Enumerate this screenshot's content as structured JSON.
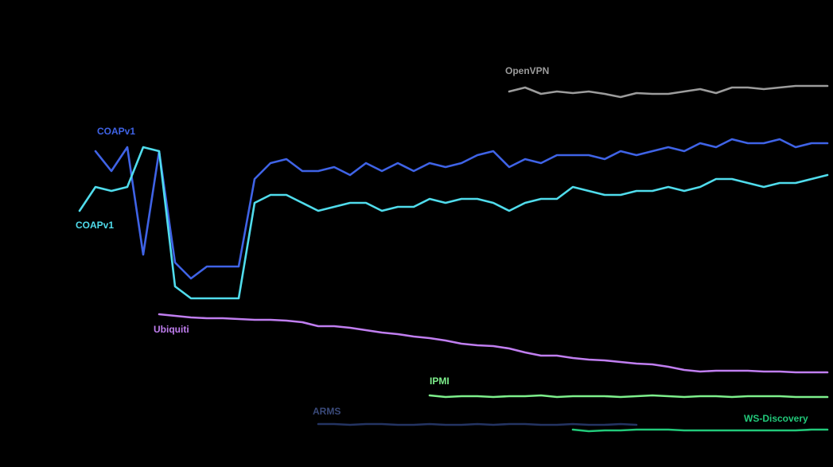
{
  "chart_data": {
    "type": "line",
    "categories": [
      null,
      null,
      null,
      null,
      null,
      null,
      null,
      null,
      null,
      null,
      null,
      null,
      null,
      null,
      null,
      null,
      null,
      null,
      null,
      null,
      null,
      null,
      null,
      null,
      null,
      null,
      null,
      null,
      null,
      null,
      null,
      null,
      null,
      null,
      null,
      null,
      null,
      null,
      null,
      null,
      null,
      null,
      null,
      null,
      null,
      null,
      null,
      null
    ],
    "ylim": [
      0,
      587
    ],
    "series": [
      {
        "name": "COAPv1",
        "color": "#3f63e6",
        "values": [
          null,
          397,
          372,
          402,
          267,
          397,
          257,
          237,
          252,
          252,
          252,
          362,
          382,
          387,
          372,
          372,
          377,
          367,
          382,
          372,
          382,
          372,
          382,
          377,
          382,
          392,
          397,
          377,
          387,
          382,
          392,
          392,
          392,
          387,
          397,
          392,
          397,
          402,
          397,
          407,
          402,
          412,
          407,
          407,
          412,
          402,
          407,
          407
        ]
      },
      {
        "name": "COAPv1",
        "color": "#50dcec",
        "values": [
          322,
          352,
          347,
          352,
          402,
          397,
          227,
          212,
          212,
          212,
          212,
          332,
          342,
          342,
          332,
          322,
          327,
          332,
          332,
          322,
          327,
          327,
          337,
          332,
          337,
          337,
          332,
          322,
          332,
          337,
          337,
          352,
          347,
          342,
          342,
          347,
          347,
          352,
          347,
          352,
          362,
          362,
          357,
          352,
          357,
          357,
          362,
          367
        ]
      },
      {
        "name": "OpenVPN",
        "color": "#9c9c9c",
        "values": [
          null,
          null,
          null,
          null,
          null,
          null,
          null,
          null,
          null,
          null,
          null,
          null,
          null,
          null,
          null,
          null,
          null,
          null,
          null,
          null,
          null,
          null,
          null,
          null,
          null,
          null,
          null,
          472,
          477,
          469,
          472,
          470,
          472,
          469,
          465,
          470,
          469,
          469,
          472,
          475,
          470,
          477,
          477,
          475,
          477,
          479,
          479,
          479
        ]
      },
      {
        "name": "Ubiquiti",
        "color": "#c07ef0",
        "values": [
          null,
          null,
          null,
          null,
          null,
          192,
          190,
          188,
          187,
          187,
          186,
          185,
          185,
          184,
          182,
          177,
          177,
          175,
          172,
          169,
          167,
          164,
          162,
          159,
          155,
          153,
          152,
          149,
          144,
          140,
          140,
          137,
          135,
          134,
          132,
          130,
          129,
          126,
          122,
          120,
          121,
          121,
          121,
          120,
          120,
          119,
          119,
          119
        ]
      },
      {
        "name": "IPMI",
        "color": "#7ef08c",
        "values": [
          null,
          null,
          null,
          null,
          null,
          null,
          null,
          null,
          null,
          null,
          null,
          null,
          null,
          null,
          null,
          null,
          null,
          null,
          null,
          null,
          null,
          null,
          90,
          88,
          89,
          89,
          88,
          89,
          89,
          90,
          88,
          89,
          89,
          89,
          88,
          89,
          90,
          89,
          88,
          89,
          89,
          88,
          89,
          89,
          89,
          88,
          88,
          88
        ]
      },
      {
        "name": "ARMS",
        "color": "#243463",
        "values": [
          null,
          null,
          null,
          null,
          null,
          null,
          null,
          null,
          null,
          null,
          null,
          null,
          null,
          null,
          null,
          54,
          54,
          53,
          54,
          54,
          53,
          53,
          54,
          53,
          53,
          54,
          53,
          54,
          54,
          53,
          53,
          54,
          53,
          53,
          54,
          53,
          null,
          null,
          null,
          null,
          null,
          null,
          null,
          null,
          null,
          null,
          null,
          null
        ]
      },
      {
        "name": "WS-Discovery",
        "color": "#22c97a",
        "values": [
          null,
          null,
          null,
          null,
          null,
          null,
          null,
          null,
          null,
          null,
          null,
          null,
          null,
          null,
          null,
          null,
          null,
          null,
          null,
          null,
          null,
          null,
          null,
          null,
          null,
          null,
          null,
          null,
          null,
          null,
          null,
          47,
          45,
          46,
          46,
          47,
          47,
          47,
          46,
          46,
          46,
          46,
          46,
          46,
          46,
          46,
          47,
          47
        ]
      }
    ]
  }
}
